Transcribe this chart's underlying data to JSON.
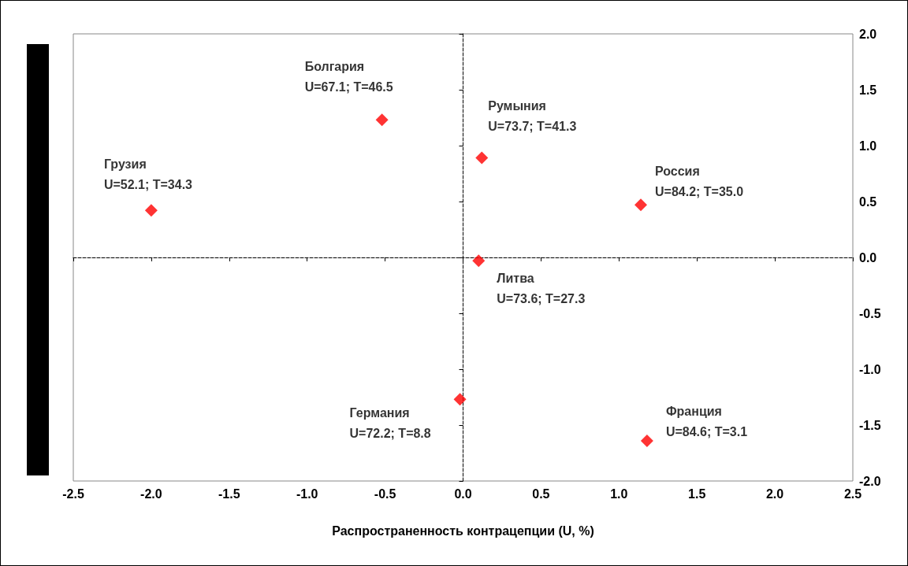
{
  "chart_data": {
    "type": "scatter",
    "xlabel": "Распространенность контрацепции (U, %)",
    "x": [
      -0.52,
      0.12,
      -2.0,
      1.14,
      0.1,
      -0.02,
      1.18
    ],
    "series": [
      {
        "color": "#ff0000",
        "values": [
          1.23,
          0.89,
          0.42,
          0.47,
          -0.03,
          -1.27,
          -1.64
        ]
      }
    ],
    "marker": "diamond",
    "xlim": [
      -2.5,
      2.5
    ],
    "xticks": [
      -2.5,
      {
        "value": -2,
        "label": "-2.0"
      },
      -1.5,
      {
        "value": -1,
        "label": "-1.0"
      },
      -0.5,
      {
        "value": 0,
        "label": "0.0"
      },
      0.5,
      {
        "value": 1,
        "label": "1.0"
      },
      1.5,
      {
        "value": 2,
        "label": "2.0"
      },
      2.5
    ],
    "ylim": [
      -2,
      2
    ],
    "yticks": [
      {
        "value": -2,
        "label": "-2.0"
      },
      -1.5,
      {
        "value": -1,
        "label": "-1.0"
      },
      -0.5,
      {
        "value": 0,
        "label": "0.0"
      },
      0.5,
      {
        "value": 1,
        "label": "1.0"
      },
      1.5,
      {
        "value": 2,
        "label": "2.0"
      }
    ],
    "annotations": [
      {
        "text": "Болгария\nU=67.1; T=46.5",
        "x": -0.52,
        "y": 1.23
      },
      {
        "text": "Румыния\nU=73.7; T=41.3",
        "x": 0.12,
        "y": 0.89
      },
      {
        "text": "Грузия\nU=52.1; T=34.3",
        "x": -2.0,
        "y": 0.42
      },
      {
        "text": "Россия\nU=84.2; T=35.0",
        "x": 1.14,
        "y": 0.47
      },
      {
        "text": "Литва\nU=73.6; T=27.3",
        "x": 0.1,
        "y": -0.03
      },
      {
        "text": "Германия\nU=72.2; T=8.8",
        "x": -0.02,
        "y": -1.27
      },
      {
        "text": "Франция\nU=84.6; T=3.1",
        "x": 1.18,
        "y": -1.64
      }
    ]
  }
}
